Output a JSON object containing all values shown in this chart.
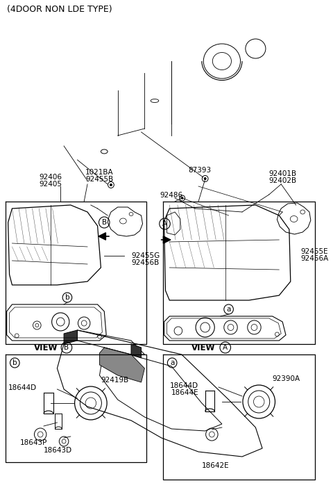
{
  "title": "(4DOOR NON LDE TYPE)",
  "bg_color": "#ffffff",
  "line_color": "#000000",
  "title_fontsize": 9,
  "label_fontsize": 7.5,
  "fig_width": 4.8,
  "fig_height": 7.05,
  "dpi": 100,
  "labels": {
    "top_center_1": "1021BA",
    "top_center_2": "92455B",
    "top_right_1": "87393",
    "top_right_part1": "92401B",
    "top_right_part2": "92402B",
    "left_top_1": "92406",
    "left_top_2": "92405",
    "left_part_1": "92455G",
    "left_part_2": "92456B",
    "right_part_1": "92455E",
    "right_part_2": "92456A",
    "right_screw": "92486",
    "left_view_label": "VIEW",
    "left_view_circle": "B",
    "right_view_label": "VIEW",
    "right_view_circle": "A",
    "left_box_circle": "b",
    "right_box_circle": "a",
    "left_lamp_circle": "B",
    "right_lamp_circle": "A",
    "left_box_part1": "92419B",
    "left_box_part2": "18644D",
    "left_box_part3": "18643P",
    "left_box_part4": "18643D",
    "right_box_part1": "92390A",
    "right_box_part2": "18644D",
    "right_box_part3": "18644E",
    "right_box_part4": "18642E"
  }
}
